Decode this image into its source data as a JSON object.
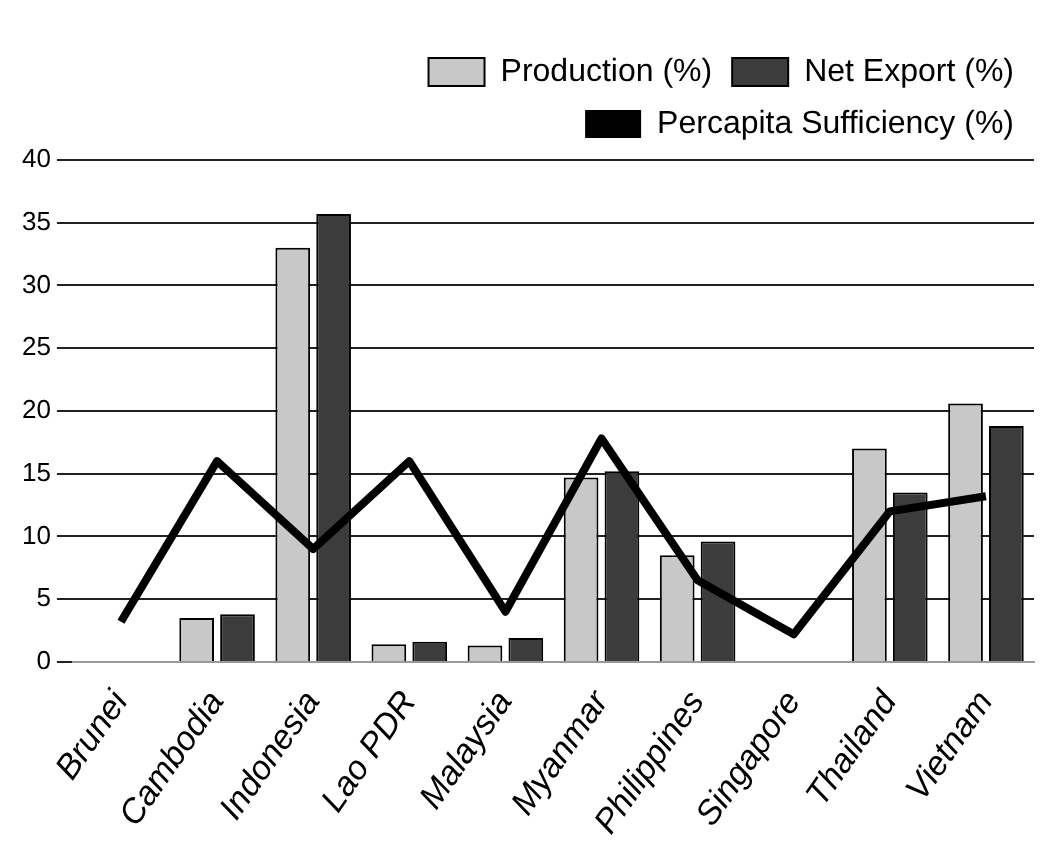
{
  "chart_data": {
    "type": "bar",
    "categories": [
      "Brunei",
      "Cambodia",
      "Indonesia",
      "Lao PDR",
      "Malaysia",
      "Myanmar",
      "Philippines",
      "Singapore",
      "Thailand",
      "Vietnam"
    ],
    "series": [
      {
        "name": "Production (%)",
        "color": "#c8c8c8",
        "values": [
          0,
          3.5,
          33,
          1.4,
          1.3,
          14.7,
          8.5,
          0,
          17,
          20.6
        ]
      },
      {
        "name": "Net Export (%)",
        "color": "#3c3c3c",
        "values": [
          0,
          3.8,
          35.7,
          1.6,
          1.9,
          15.2,
          9.6,
          0,
          13.5,
          18.8
        ]
      },
      {
        "name": "Percapita Sufficiency (%)",
        "type": "line",
        "color": "#000000",
        "values": [
          3.2,
          16,
          9,
          16,
          4,
          17.8,
          6.5,
          2.2,
          12,
          13.2
        ]
      }
    ],
    "ylim": [
      0,
      40
    ],
    "yticks": [
      0,
      5,
      10,
      15,
      20,
      25,
      30,
      35,
      40
    ],
    "grid": "y",
    "legend": "top right",
    "marker": "none"
  }
}
